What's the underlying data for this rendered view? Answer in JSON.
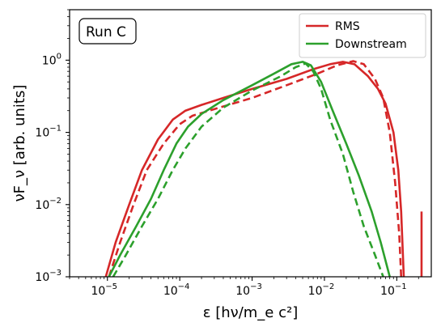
{
  "chart_data": {
    "type": "line",
    "title": "",
    "xlabel": "ε [hν/m_e c²]",
    "ylabel": "νF_ν [arb. units]",
    "xscale": "log",
    "yscale": "log",
    "xlim": [
      3e-06,
      0.3
    ],
    "ylim": [
      0.001,
      5
    ],
    "grid": false,
    "legend_position": "top-right",
    "annotation": "Run C",
    "x_ticks": [
      {
        "value": 1e-05,
        "base": "10",
        "exp": "−5"
      },
      {
        "value": 0.0001,
        "base": "10",
        "exp": "−4"
      },
      {
        "value": 0.001,
        "base": "10",
        "exp": "−3"
      },
      {
        "value": 0.01,
        "base": "10",
        "exp": "−2"
      },
      {
        "value": 0.1,
        "base": "10",
        "exp": "−1"
      }
    ],
    "y_ticks": [
      {
        "value": 0.001,
        "base": "10",
        "exp": "−3"
      },
      {
        "value": 0.01,
        "base": "10",
        "exp": "−2"
      },
      {
        "value": 0.1,
        "base": "10",
        "exp": "−1"
      },
      {
        "value": 1,
        "base": "10",
        "exp": "0"
      }
    ],
    "series": [
      {
        "name": "RMS",
        "color": "#d62728",
        "style": "solid",
        "legend": true,
        "points": [
          [
            9.5e-06,
            0.001
          ],
          [
            1.3e-05,
            0.003
          ],
          [
            2e-05,
            0.01
          ],
          [
            3e-05,
            0.03
          ],
          [
            5e-05,
            0.08
          ],
          [
            8e-05,
            0.15
          ],
          [
            0.00012,
            0.2
          ],
          [
            0.0002,
            0.24
          ],
          [
            0.0004,
            0.3
          ],
          [
            0.001,
            0.4
          ],
          [
            0.003,
            0.55
          ],
          [
            0.007,
            0.75
          ],
          [
            0.012,
            0.88
          ],
          [
            0.018,
            0.95
          ],
          [
            0.026,
            0.88
          ],
          [
            0.04,
            0.6
          ],
          [
            0.055,
            0.4
          ],
          [
            0.07,
            0.25
          ],
          [
            0.09,
            0.1
          ],
          [
            0.105,
            0.03
          ],
          [
            0.115,
            0.008
          ],
          [
            0.125,
            0.001
          ]
        ]
      },
      {
        "name": "RMS (dashed)",
        "color": "#d62728",
        "style": "dashed",
        "legend": false,
        "points": [
          [
            1.05e-05,
            0.001
          ],
          [
            1.5e-05,
            0.003
          ],
          [
            2.3e-05,
            0.01
          ],
          [
            3.5e-05,
            0.03
          ],
          [
            6e-05,
            0.07
          ],
          [
            0.0001,
            0.13
          ],
          [
            0.00015,
            0.17
          ],
          [
            0.0003,
            0.21
          ],
          [
            0.001,
            0.3
          ],
          [
            0.003,
            0.45
          ],
          [
            0.008,
            0.65
          ],
          [
            0.015,
            0.85
          ],
          [
            0.025,
            0.97
          ],
          [
            0.035,
            0.88
          ],
          [
            0.05,
            0.55
          ],
          [
            0.065,
            0.3
          ],
          [
            0.08,
            0.1
          ],
          [
            0.095,
            0.02
          ],
          [
            0.108,
            0.004
          ],
          [
            0.115,
            0.001
          ]
        ]
      },
      {
        "name": "RMS spike",
        "color": "#d62728",
        "style": "solid",
        "legend": false,
        "points": [
          [
            0.22,
            0.001
          ],
          [
            0.22,
            0.008
          ]
        ]
      },
      {
        "name": "Downstream",
        "color": "#2ca02c",
        "style": "solid",
        "legend": true,
        "points": [
          [
            1.05e-05,
            0.001
          ],
          [
            1.5e-05,
            0.002
          ],
          [
            2.5e-05,
            0.005
          ],
          [
            4e-05,
            0.012
          ],
          [
            6e-05,
            0.03
          ],
          [
            9e-05,
            0.07
          ],
          [
            0.00013,
            0.12
          ],
          [
            0.0002,
            0.18
          ],
          [
            0.0004,
            0.28
          ],
          [
            0.001,
            0.45
          ],
          [
            0.002,
            0.65
          ],
          [
            0.0035,
            0.88
          ],
          [
            0.005,
            0.95
          ],
          [
            0.0065,
            0.85
          ],
          [
            0.009,
            0.5
          ],
          [
            0.013,
            0.2
          ],
          [
            0.02,
            0.07
          ],
          [
            0.03,
            0.025
          ],
          [
            0.045,
            0.008
          ],
          [
            0.06,
            0.003
          ],
          [
            0.08,
            0.001
          ]
        ]
      },
      {
        "name": "Downstream (dashed)",
        "color": "#2ca02c",
        "style": "dashed",
        "legend": false,
        "points": [
          [
            1.2e-05,
            0.001
          ],
          [
            1.8e-05,
            0.002
          ],
          [
            3e-05,
            0.005
          ],
          [
            5e-05,
            0.012
          ],
          [
            8e-05,
            0.03
          ],
          [
            0.00012,
            0.06
          ],
          [
            0.0002,
            0.12
          ],
          [
            0.0004,
            0.22
          ],
          [
            0.001,
            0.38
          ],
          [
            0.0025,
            0.6
          ],
          [
            0.004,
            0.8
          ],
          [
            0.0055,
            0.9
          ],
          [
            0.007,
            0.7
          ],
          [
            0.009,
            0.4
          ],
          [
            0.012,
            0.15
          ],
          [
            0.018,
            0.05
          ],
          [
            0.025,
            0.015
          ],
          [
            0.035,
            0.005
          ],
          [
            0.05,
            0.002
          ],
          [
            0.065,
            0.001
          ]
        ]
      }
    ]
  }
}
